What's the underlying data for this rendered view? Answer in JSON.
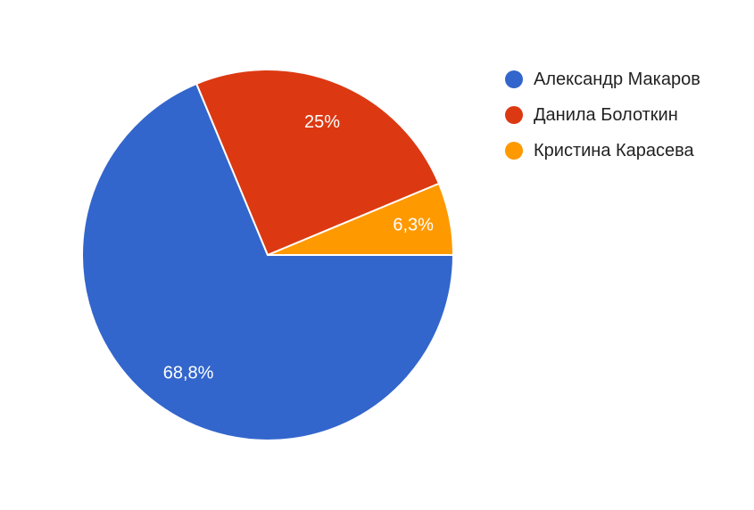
{
  "chart_data": {
    "type": "pie",
    "categories": [
      "Александр Макаров",
      "Данила Болоткин",
      "Кристина Карасева"
    ],
    "values": [
      68.8,
      25,
      6.3
    ],
    "value_labels": [
      "68,8%",
      "25%",
      "6,3%"
    ],
    "colors": [
      "#3366cc",
      "#dc3912",
      "#ff9900"
    ],
    "legend": "right"
  }
}
